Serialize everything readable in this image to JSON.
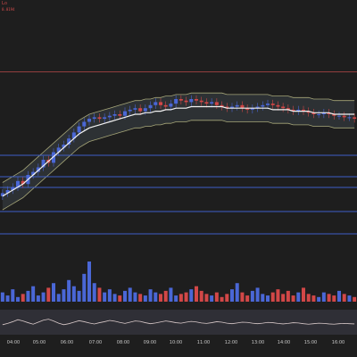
{
  "corner": {
    "symbol": "Lo",
    "sub": "0.0194"
  },
  "colors": {
    "background": "#1e1e1e",
    "up": "#4a67d6",
    "down": "#d24747",
    "ma": "#f2f2f2",
    "band": "#a6a678",
    "band_fill": "#3a4247",
    "hline": "#3f5fc8",
    "resistance": "#b84848",
    "osc": "#d8c9c9",
    "osc_bg": "#2f2f36",
    "axis_text": "#c8c8c8"
  },
  "chart_data": {
    "type": "candlestick",
    "x_ticks": [
      "04:00",
      "05:00",
      "06:00",
      "07:00",
      "08:00",
      "09:00",
      "10:00",
      "11:00",
      "12:00",
      "13:00",
      "14:00",
      "15:00",
      "16:00"
    ],
    "price_range": [
      0,
      100
    ],
    "candles_close": [
      8,
      10,
      12,
      16,
      14,
      20,
      22,
      25,
      30,
      28,
      35,
      38,
      40,
      44,
      48,
      52,
      55,
      57,
      58,
      57,
      58,
      59,
      60,
      59,
      62,
      63,
      64,
      62,
      64,
      66,
      68,
      66,
      65,
      67,
      70,
      69,
      68,
      70,
      69,
      68,
      67,
      68,
      66,
      65,
      64,
      65,
      66,
      64,
      63,
      64,
      65,
      66,
      67,
      66,
      65,
      64,
      63,
      62,
      63,
      62,
      61,
      60,
      60,
      61,
      60,
      59,
      59,
      58,
      58,
      57
    ],
    "ma_values": [
      6,
      8,
      10,
      12,
      14,
      17,
      20,
      23,
      26,
      29,
      32,
      35,
      38,
      41,
      44,
      47,
      49,
      51,
      52,
      53,
      54,
      55,
      56,
      57,
      58,
      59,
      60,
      60,
      61,
      61,
      62,
      62,
      63,
      63,
      64,
      64,
      64,
      65,
      65,
      65,
      65,
      65,
      65,
      65,
      64,
      64,
      64,
      64,
      64,
      64,
      64,
      64,
      64,
      63,
      63,
      63,
      63,
      62,
      62,
      62,
      62,
      61,
      61,
      61,
      61,
      60,
      60,
      60,
      60,
      60
    ],
    "band_width": 9,
    "horizontal_levels": [
      48,
      43,
      38,
      33,
      27
    ],
    "resistance_level": 88,
    "volume": [
      6,
      4,
      8,
      3,
      5,
      7,
      10,
      4,
      6,
      9,
      12,
      5,
      8,
      14,
      10,
      7,
      18,
      26,
      12,
      9,
      6,
      8,
      5,
      4,
      7,
      9,
      6,
      5,
      4,
      8,
      6,
      5,
      7,
      9,
      4,
      5,
      6,
      8,
      10,
      7,
      5,
      4,
      6,
      3,
      5,
      8,
      12,
      6,
      4,
      7,
      9,
      5,
      4,
      6,
      8,
      5,
      7,
      4,
      6,
      9,
      5,
      4,
      3,
      6,
      5,
      4,
      7,
      5,
      4,
      3
    ],
    "oscillator": [
      40,
      45,
      52,
      60,
      55,
      48,
      42,
      50,
      58,
      62,
      55,
      46,
      40,
      44,
      50,
      56,
      52,
      47,
      43,
      48,
      52,
      57,
      54,
      49,
      45,
      50,
      55,
      53,
      48,
      44,
      47,
      51,
      55,
      52,
      48,
      46,
      50,
      53,
      51,
      47,
      45,
      48,
      52,
      50,
      46,
      44,
      47,
      50,
      49,
      46,
      44,
      46,
      49,
      48,
      45,
      43,
      45,
      48,
      47,
      44,
      42,
      44,
      46,
      45,
      43,
      42,
      44,
      45,
      44,
      43
    ]
  }
}
